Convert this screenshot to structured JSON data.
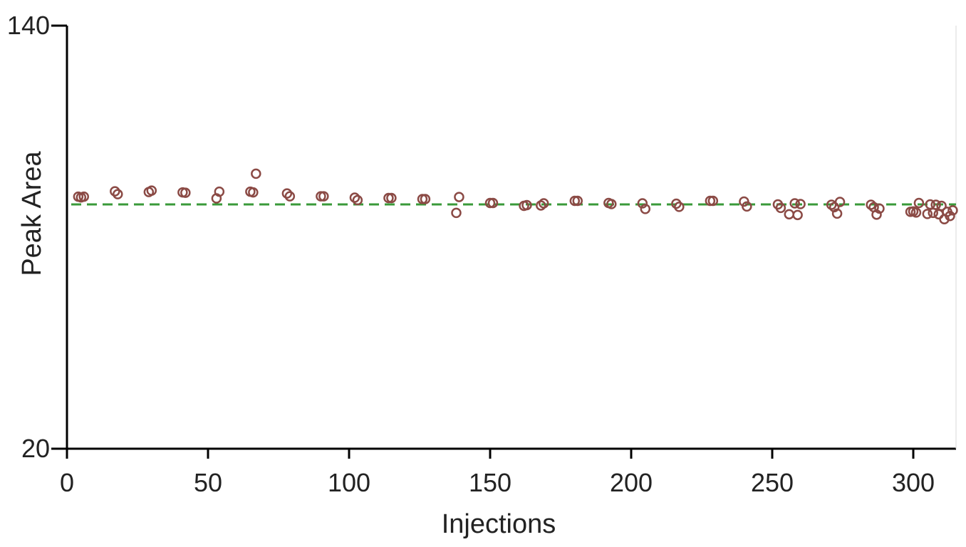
{
  "chart_data": {
    "type": "scatter",
    "xlabel": "Injections",
    "ylabel": "Peak Area",
    "xlim": [
      0,
      315
    ],
    "ylim": [
      20,
      140
    ],
    "x_ticks": [
      0,
      50,
      100,
      150,
      200,
      250,
      300
    ],
    "y_ticks": [
      20,
      140
    ],
    "grid": false,
    "legend": "none",
    "reference_line": {
      "y": 89.3,
      "style": "dashed",
      "color": "#3a9a3a"
    },
    "marker_color": "#8b4a45",
    "axis_color": "#000000",
    "points": [
      {
        "x": 4,
        "y": 91.5
      },
      {
        "x": 5,
        "y": 91.3
      },
      {
        "x": 6,
        "y": 91.5
      },
      {
        "x": 17,
        "y": 93.0
      },
      {
        "x": 18,
        "y": 92.2
      },
      {
        "x": 29,
        "y": 92.8
      },
      {
        "x": 30,
        "y": 93.2
      },
      {
        "x": 41,
        "y": 92.7
      },
      {
        "x": 42,
        "y": 92.6
      },
      {
        "x": 53,
        "y": 91.0
      },
      {
        "x": 54,
        "y": 92.9
      },
      {
        "x": 65,
        "y": 92.9
      },
      {
        "x": 66,
        "y": 92.7
      },
      {
        "x": 67,
        "y": 98.0
      },
      {
        "x": 78,
        "y": 92.4
      },
      {
        "x": 79,
        "y": 91.6
      },
      {
        "x": 90,
        "y": 91.6
      },
      {
        "x": 91,
        "y": 91.6
      },
      {
        "x": 102,
        "y": 91.2
      },
      {
        "x": 103,
        "y": 90.5
      },
      {
        "x": 114,
        "y": 91.1
      },
      {
        "x": 115,
        "y": 91.1
      },
      {
        "x": 126,
        "y": 90.8
      },
      {
        "x": 127,
        "y": 90.8
      },
      {
        "x": 138,
        "y": 86.9
      },
      {
        "x": 139,
        "y": 91.4
      },
      {
        "x": 150,
        "y": 89.7
      },
      {
        "x": 151,
        "y": 89.7
      },
      {
        "x": 162,
        "y": 88.9
      },
      {
        "x": 163,
        "y": 89.1
      },
      {
        "x": 168,
        "y": 89.0
      },
      {
        "x": 169,
        "y": 89.6
      },
      {
        "x": 180,
        "y": 90.3
      },
      {
        "x": 181,
        "y": 90.3
      },
      {
        "x": 192,
        "y": 89.7
      },
      {
        "x": 193,
        "y": 89.4
      },
      {
        "x": 204,
        "y": 89.6
      },
      {
        "x": 205,
        "y": 88.0
      },
      {
        "x": 216,
        "y": 89.5
      },
      {
        "x": 217,
        "y": 88.6
      },
      {
        "x": 228,
        "y": 90.3
      },
      {
        "x": 229,
        "y": 90.3
      },
      {
        "x": 240,
        "y": 90.1
      },
      {
        "x": 241,
        "y": 88.7
      },
      {
        "x": 252,
        "y": 89.3
      },
      {
        "x": 253,
        "y": 88.3
      },
      {
        "x": 256,
        "y": 86.5
      },
      {
        "x": 258,
        "y": 89.6
      },
      {
        "x": 259,
        "y": 86.3
      },
      {
        "x": 260,
        "y": 89.4
      },
      {
        "x": 271,
        "y": 89.2
      },
      {
        "x": 272,
        "y": 88.5
      },
      {
        "x": 273,
        "y": 86.7
      },
      {
        "x": 274,
        "y": 90.0
      },
      {
        "x": 285,
        "y": 89.2
      },
      {
        "x": 286,
        "y": 88.5
      },
      {
        "x": 287,
        "y": 86.4
      },
      {
        "x": 288,
        "y": 88.1
      },
      {
        "x": 299,
        "y": 87.2
      },
      {
        "x": 300,
        "y": 87.3
      },
      {
        "x": 301,
        "y": 87.0
      },
      {
        "x": 302,
        "y": 89.7
      },
      {
        "x": 305,
        "y": 86.6
      },
      {
        "x": 306,
        "y": 89.3
      },
      {
        "x": 307,
        "y": 86.9
      },
      {
        "x": 308,
        "y": 89.2
      },
      {
        "x": 309,
        "y": 86.5
      },
      {
        "x": 310,
        "y": 88.9
      },
      {
        "x": 311,
        "y": 85.1
      },
      {
        "x": 312,
        "y": 87.2
      },
      {
        "x": 313,
        "y": 86.0
      },
      {
        "x": 314,
        "y": 87.6
      }
    ]
  }
}
